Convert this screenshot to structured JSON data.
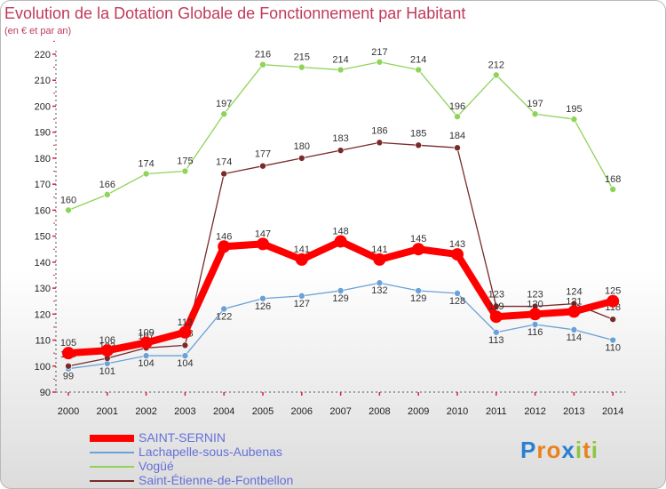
{
  "title": "Evolution de la Dotation Globale de Fonctionnement par Habitant",
  "subtitle": "(en € et par an)",
  "logo": "Proxiti",
  "chart_data": {
    "type": "line",
    "title": "Evolution de la Dotation Globale de Fonctionnement par Habitant",
    "ylabel": "(en € et par an)",
    "xlabel": "",
    "categories": [
      "2000",
      "2001",
      "2002",
      "2003",
      "2004",
      "2005",
      "2006",
      "2007",
      "2008",
      "2009",
      "2010",
      "2011",
      "2012",
      "2013",
      "2014"
    ],
    "ylim": [
      90,
      220
    ],
    "yticks": [
      90,
      100,
      110,
      120,
      130,
      140,
      150,
      160,
      170,
      180,
      190,
      200,
      210,
      220
    ],
    "series": [
      {
        "name": "SAINT-SERNIN",
        "color": "#ff0000",
        "values": [
          105,
          106,
          109,
          113,
          146,
          147,
          141,
          148,
          141,
          145,
          143,
          119,
          120,
          121,
          125
        ]
      },
      {
        "name": "Lachapelle-sous-Aubenas",
        "color": "#6aa1d6",
        "values": [
          99,
          101,
          104,
          104,
          122,
          126,
          127,
          129,
          132,
          129,
          128,
          113,
          116,
          114,
          110
        ]
      },
      {
        "name": "Vogüé",
        "color": "#8fd45a",
        "values": [
          160,
          166,
          174,
          175,
          197,
          216,
          215,
          214,
          217,
          214,
          196,
          212,
          197,
          195,
          168
        ]
      },
      {
        "name": "Saint-Étienne-de-Fontbellon",
        "color": "#7a2a2a",
        "values": [
          100,
          103,
          107,
          108,
          174,
          177,
          180,
          183,
          186,
          185,
          184,
          123,
          123,
          124,
          118
        ]
      }
    ],
    "legend": "bottom-left"
  }
}
